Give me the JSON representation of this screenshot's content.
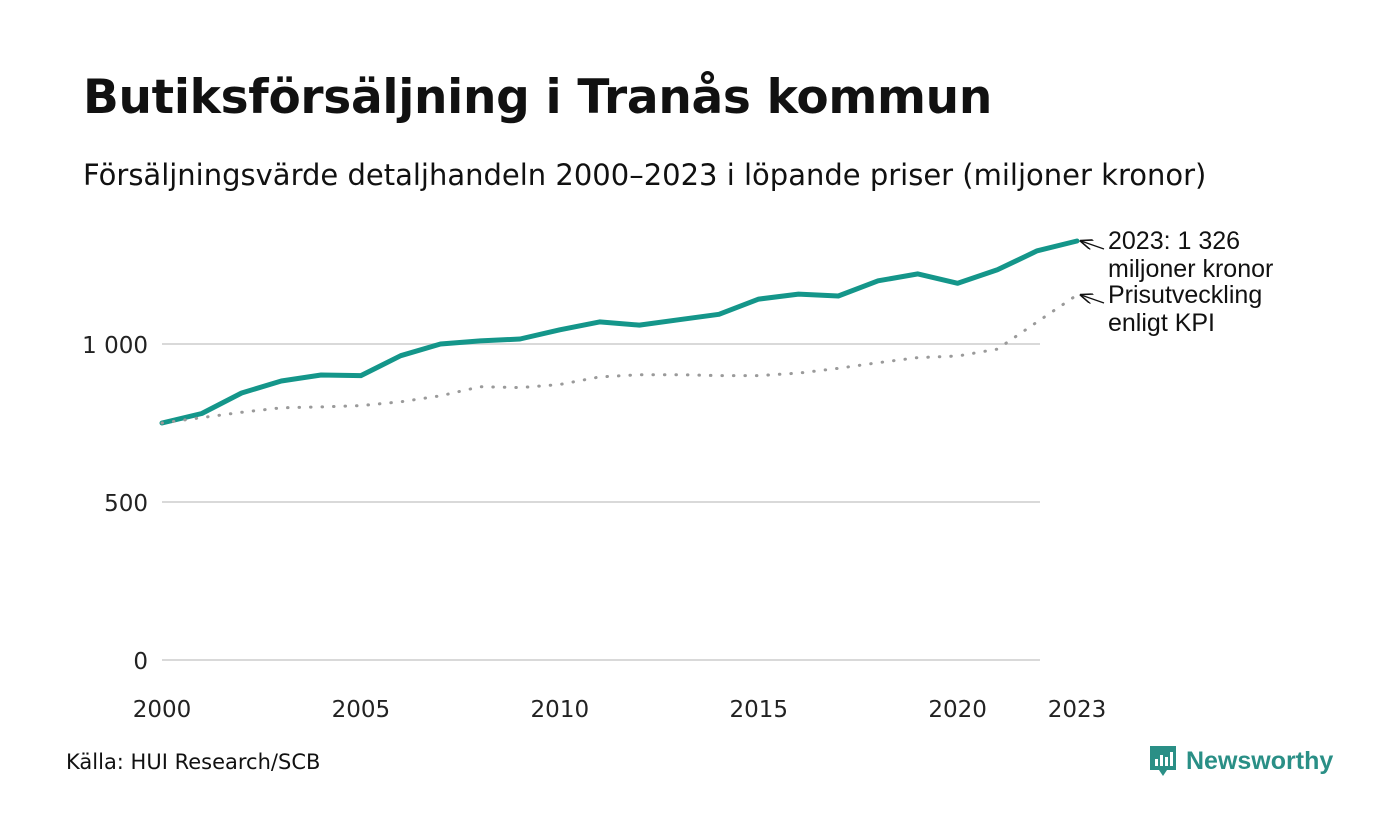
{
  "title": "Butiksförsäljning i Tranås kommun",
  "subtitle": "Försäljningsvärde detaljhandeln 2000–2023 i löpande priser (miljoner kronor)",
  "source": "Källa: HUI Research/SCB",
  "brand": "Newsworthy",
  "colors": {
    "sales": "#14968a",
    "kpi": "#9a9a9a",
    "grid": "#d9d9d9",
    "brand": "#2a8f86"
  },
  "chart_data": {
    "type": "line",
    "x": [
      2000,
      2001,
      2002,
      2003,
      2004,
      2005,
      2006,
      2007,
      2008,
      2009,
      2010,
      2011,
      2012,
      2013,
      2014,
      2015,
      2016,
      2017,
      2018,
      2019,
      2020,
      2021,
      2022,
      2023
    ],
    "series": [
      {
        "name": "Försäljningsvärde",
        "style": "solid",
        "values": [
          750,
          780,
          845,
          883,
          902,
          900,
          963,
          1000,
          1010,
          1016,
          1045,
          1070,
          1060,
          1077,
          1094,
          1142,
          1158,
          1152,
          1200,
          1222,
          1192,
          1235,
          1295,
          1326
        ]
      },
      {
        "name": "Prisutveckling enligt KPI",
        "style": "dotted",
        "values": [
          750,
          767,
          784,
          798,
          801,
          805,
          817,
          836,
          865,
          862,
          872,
          896,
          903,
          903,
          900,
          900,
          908,
          923,
          941,
          957,
          962,
          984,
          1070,
          1155
        ]
      }
    ],
    "yticks": [
      0,
      500,
      1000
    ],
    "ytick_labels": [
      "0",
      "500",
      "1 000"
    ],
    "xticks": [
      2000,
      2005,
      2010,
      2015,
      2020,
      2023
    ],
    "xtick_labels": [
      "2000",
      "2005",
      "2010",
      "2015",
      "2020",
      "2023"
    ],
    "ylim": [
      0,
      1326
    ],
    "xlim": [
      2000,
      2023
    ],
    "grid": true,
    "annotations": [
      {
        "series": 0,
        "lines": [
          "2023: 1 326",
          "miljoner kronor"
        ]
      },
      {
        "series": 1,
        "lines": [
          "Prisutveckling",
          "enligt KPI"
        ]
      }
    ]
  }
}
